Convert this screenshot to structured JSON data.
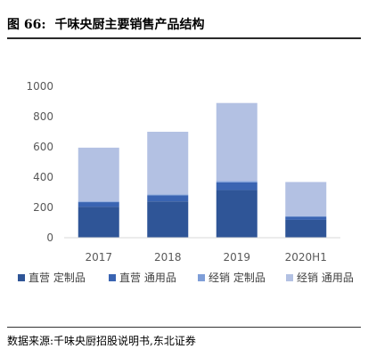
{
  "header": {
    "figure_label": "图 66:",
    "title": "千味央厨主要销售产品结构"
  },
  "source": "数据来源:千味央厨招股说明书,东北证券",
  "colors": {
    "series": [
      "#2f5597",
      "#3a64b2",
      "#7f9ed8",
      "#b3c1e3"
    ],
    "axis": "#d9d9d9",
    "text": "#595959"
  },
  "chart_data": {
    "type": "bar",
    "stacked": true,
    "categories": [
      "2017",
      "2018",
      "2019",
      "2020H1"
    ],
    "series": [
      {
        "name": "直营 定制品",
        "values": [
          205,
          240,
          315,
          118
        ]
      },
      {
        "name": "直营 通用品",
        "values": [
          30,
          40,
          50,
          20
        ]
      },
      {
        "name": "经销 定制品",
        "values": [
          5,
          5,
          10,
          5
        ]
      },
      {
        "name": "经销 通用品",
        "values": [
          355,
          415,
          515,
          225
        ]
      }
    ],
    "ylim": [
      0,
      1000
    ],
    "yticks": [
      "0",
      "200",
      "400",
      "600",
      "800",
      "1000"
    ],
    "grid": false,
    "legend_position": "bottom",
    "title": "",
    "xlabel": "",
    "ylabel": ""
  }
}
